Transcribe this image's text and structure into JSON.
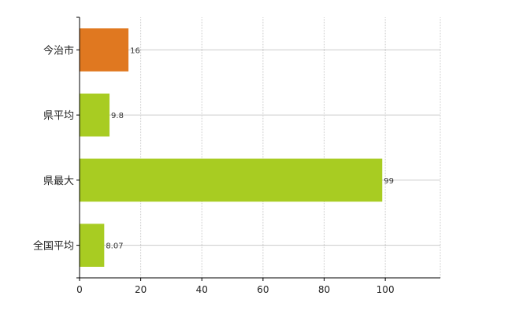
{
  "chart_data": {
    "type": "bar",
    "orientation": "horizontal",
    "categories": [
      "今治市",
      "県平均",
      "県最大",
      "全国平均"
    ],
    "values": [
      16,
      9.8,
      99,
      8.07
    ],
    "value_labels": [
      "16",
      "9.8",
      "99",
      "8.07"
    ],
    "bar_colors": [
      "#e07820",
      "#a8cc22",
      "#a8cc22",
      "#a8cc22"
    ],
    "xlim": [
      0,
      118
    ],
    "xticks": [
      0,
      20,
      40,
      60,
      80,
      100
    ],
    "xtick_labels": [
      "0",
      "20",
      "40",
      "60",
      "80",
      "100"
    ],
    "grid": true,
    "title": "",
    "xlabel": "",
    "ylabel": ""
  }
}
